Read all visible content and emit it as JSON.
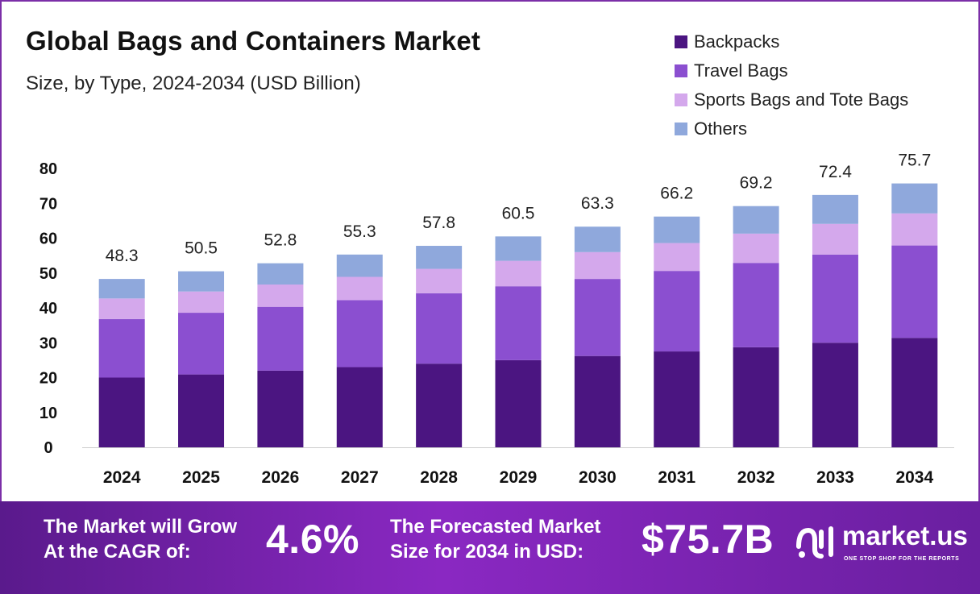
{
  "chart_data": {
    "type": "bar",
    "stacked": true,
    "title": "Global Bags and Containers Market",
    "subtitle": "Size, by Type, 2024-2034 (USD Billion)",
    "categories": [
      "2024",
      "2025",
      "2026",
      "2027",
      "2028",
      "2029",
      "2030",
      "2031",
      "2032",
      "2033",
      "2034"
    ],
    "series": [
      {
        "name": "Backpacks",
        "color": "#4b1581",
        "values": [
          20.0,
          20.9,
          22.0,
          23.0,
          24.0,
          25.0,
          26.2,
          27.5,
          28.7,
          30.0,
          31.4
        ]
      },
      {
        "name": "Travel Bags",
        "color": "#8b4fd0",
        "values": [
          16.8,
          17.7,
          18.3,
          19.2,
          20.2,
          21.2,
          22.1,
          23.1,
          24.2,
          25.3,
          26.5
        ]
      },
      {
        "name": "Sports Bags and Tote Bags",
        "color": "#d4a8ec",
        "values": [
          5.9,
          6.1,
          6.4,
          6.7,
          7.0,
          7.3,
          7.7,
          8.0,
          8.4,
          8.8,
          9.2
        ]
      },
      {
        "name": "Others",
        "color": "#8fa8dc",
        "values": [
          5.6,
          5.8,
          6.1,
          6.4,
          6.6,
          7.0,
          7.3,
          7.6,
          7.9,
          8.3,
          8.6
        ]
      }
    ],
    "totals": [
      48.3,
      50.5,
      52.8,
      55.3,
      57.8,
      60.5,
      63.3,
      66.2,
      69.2,
      72.4,
      75.7
    ],
    "total_labels": [
      "48.3",
      "50.5",
      "52.8",
      "55.3",
      "57.8",
      "60.5",
      "63.3",
      "66.2",
      "69.2",
      "72.4",
      "75.7"
    ],
    "y_ticks": [
      0,
      10,
      20,
      30,
      40,
      50,
      60,
      70,
      80
    ],
    "ylim": [
      0,
      80
    ],
    "grid": false,
    "legend_position": "top-right",
    "xlabel": "",
    "ylabel": ""
  },
  "legend": {
    "items": [
      {
        "label": "Backpacks",
        "color": "#4b1581"
      },
      {
        "label": "Travel Bags",
        "color": "#8b4fd0"
      },
      {
        "label": "Sports Bags and Tote Bags",
        "color": "#d4a8ec"
      },
      {
        "label": "Others",
        "color": "#8fa8dc"
      }
    ]
  },
  "footer": {
    "cagr_line1": "The Market will Grow",
    "cagr_line2": "At the CAGR of:",
    "cagr_value": "4.6%",
    "forecast_line1": "The Forecasted Market",
    "forecast_line2": "Size for 2034 in USD:",
    "forecast_value": "$75.7B",
    "brand_name": "market.us",
    "brand_tagline": "ONE STOP SHOP FOR THE REPORTS"
  },
  "colors": {
    "frame_border": "#7b2fa8",
    "footer_start": "#5a1a8c",
    "footer_end": "#6a1fa0"
  }
}
